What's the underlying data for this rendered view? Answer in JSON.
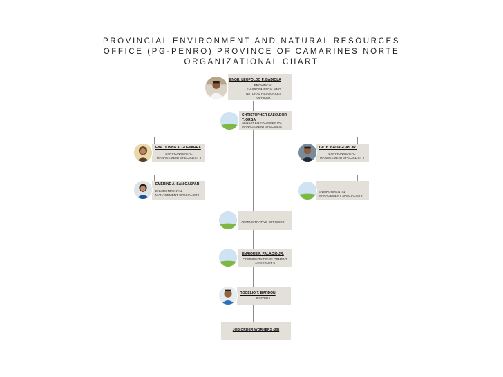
{
  "title": {
    "line1": "PROVINCIAL ENVIRONMENT AND NATURAL RESOURCES",
    "line2": "OFFICE (PG-PENRO) PROVINCE OF CAMARINES NORTE",
    "line3": "ORGANIZATIONAL CHART"
  },
  "nodes": {
    "head": {
      "name": "ENGR. LEOPOLDO P. BADIOLA",
      "role1": "PROVINCIAL",
      "role2": "ENVIRONMENTAL AND",
      "role3": "NATURAL RESOURCES",
      "role4": "OFFICER",
      "avatar": "photo-man-white-shirt"
    },
    "senior": {
      "name1": "CHRISTOPHER SALVADOR",
      "name2": "T. ORBA",
      "role1": "SENIOR ENVIRONMENTAL",
      "role2": "MANAGEMENT SPECIALIST",
      "avatar": "placeholder-landscape"
    },
    "ems2_left": {
      "name": "EnP. DONNA A. GUEVARRA",
      "role1": "ENVIRONMENTAL",
      "role2": "MANAGEMENT SPECIALIST II",
      "avatar": "photo-woman"
    },
    "ems2_right": {
      "name": "GIL B. BADAGUAS JR.",
      "role1": "ENVIRONMENTAL",
      "role2": "MANAGEMENT SPECIALIST II",
      "avatar": "photo-man"
    },
    "ems1_left": {
      "name": "EMERINE A. SAN GASPAR",
      "role1": "ENVIRONMENTAL",
      "role2": "MANAGEMENT SPECIALIST I",
      "avatar": "photo-woman-blue"
    },
    "ems1_right": {
      "role1": "ENVIRONMENTAL",
      "role2": "MANAGEMENT SPECIALIST I*",
      "avatar": "placeholder-landscape"
    },
    "admin": {
      "role1": "ADMINISTRATIVE OFFICER I*",
      "avatar": "placeholder-landscape"
    },
    "community": {
      "name": "ENRIQUE F. PALACIO JR.",
      "role1": "COMMUNITY DEVELOPMENT",
      "role2": "ASSISTANT II",
      "avatar": "placeholder-landscape"
    },
    "driver": {
      "name": "ROGELIO T. BARDON",
      "role1": "DRIVER I",
      "avatar": "photo-man-blue"
    },
    "job_order": {
      "name": "JOB ORDER WORKERS (29)"
    }
  },
  "colors": {
    "card": "#e3e0da",
    "connector": "#8c8c8c",
    "placeholder_sky": "#cfe3f3",
    "placeholder_grass": "#7fb744"
  }
}
